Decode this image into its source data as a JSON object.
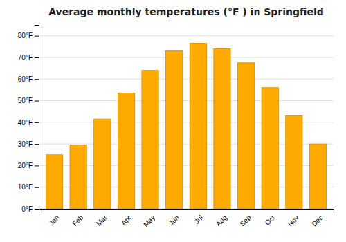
{
  "chart_data": {
    "type": "bar",
    "title": "Average monthly temperatures (°F ) in Springfield",
    "categories": [
      "Jan",
      "Feb",
      "Mar",
      "Apr",
      "May",
      "Jun",
      "Jul",
      "Aug",
      "Sep",
      "Oct",
      "Nov",
      "Dec"
    ],
    "values": [
      25,
      29.5,
      41.5,
      53.5,
      64,
      73,
      76.5,
      74,
      67.5,
      56,
      43,
      30
    ],
    "color": "#FFAA00",
    "ylim": [
      0,
      85
    ],
    "yticks": [
      {
        "value": 0,
        "label": "0°F"
      },
      {
        "value": 10,
        "label": "10°F"
      },
      {
        "value": 20,
        "label": "20°F"
      },
      {
        "value": 30,
        "label": "30°F"
      },
      {
        "value": 40,
        "label": "40°F"
      },
      {
        "value": 50,
        "label": "50°F"
      },
      {
        "value": 60,
        "label": "60°F"
      },
      {
        "value": 70,
        "label": "70°F"
      },
      {
        "value": 80,
        "label": "80°F"
      }
    ],
    "grid": true
  }
}
